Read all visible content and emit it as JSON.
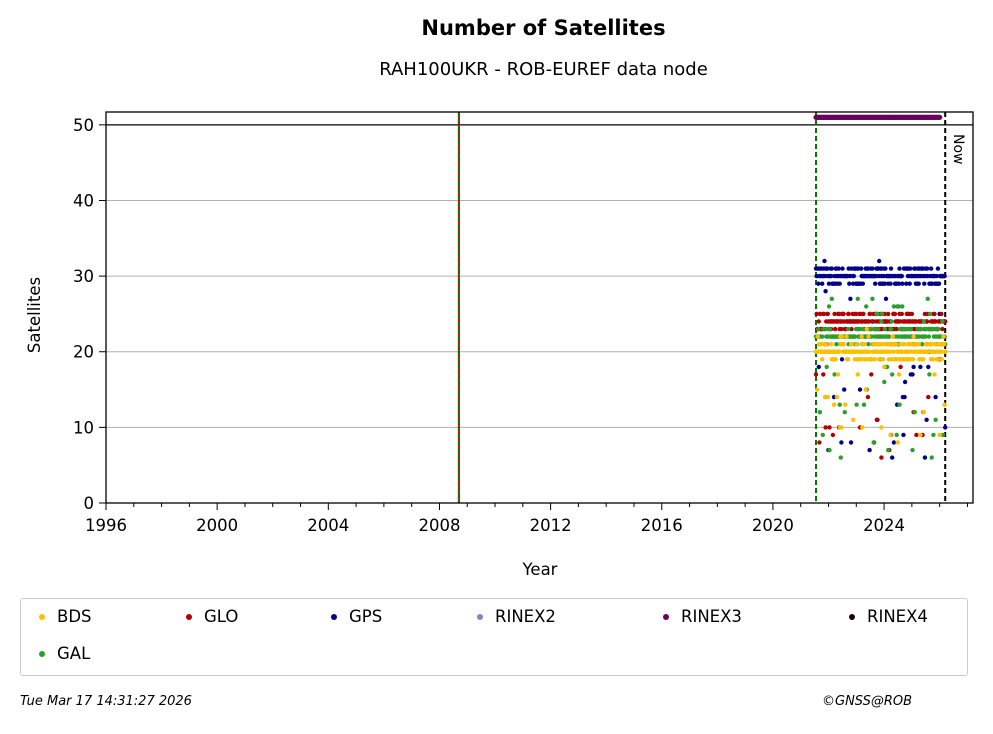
{
  "footer": {
    "timestamp": "Tue Mar 17 14:31:27 2026",
    "credit": "©GNSS@ROB"
  },
  "chart_data": {
    "type": "scatter",
    "title": "Number of Satellites",
    "subtitle": "RAH100UKR - ROB-EUREF data node",
    "xlabel": "Year",
    "ylabel": "Satellites",
    "xlim": [
      1996,
      2027.2
    ],
    "ylim": [
      0,
      51.7
    ],
    "xticks": [
      1996,
      2000,
      2004,
      2008,
      2012,
      2016,
      2020,
      2024
    ],
    "yticks": [
      0,
      10,
      20,
      30,
      40,
      50
    ],
    "grid": "horizontal",
    "now_label": "Now",
    "now_x": 2026.2,
    "vertical_markers": [
      {
        "x": 2008.7,
        "style": "red-green dashed"
      },
      {
        "x": 2021.55,
        "style": "green dashed"
      },
      {
        "x": 2026.2,
        "style": "black dashed"
      }
    ],
    "legend_position": "below",
    "legend": [
      {
        "name": "BDS",
        "color": "#ffbf00"
      },
      {
        "name": "GLO",
        "color": "#b30000"
      },
      {
        "name": "GPS",
        "color": "#00008b"
      },
      {
        "name": "RINEX2",
        "color": "#8a7fc2"
      },
      {
        "name": "RINEX3",
        "color": "#6b005e"
      },
      {
        "name": "RINEX4",
        "color": "#1a0010"
      },
      {
        "name": "GAL",
        "color": "#2ca02c"
      }
    ],
    "series": [
      {
        "name": "GPS",
        "x_range": [
          2021.55,
          2026.2
        ],
        "typical": 30,
        "min": 6,
        "max": 32
      },
      {
        "name": "GLO",
        "x_range": [
          2021.55,
          2026.2
        ],
        "typical": 24,
        "min": 6,
        "max": 24
      },
      {
        "name": "GAL",
        "x_range": [
          2021.55,
          2026.2
        ],
        "typical": 22,
        "min": 6,
        "max": 27
      },
      {
        "name": "BDS",
        "x_range": [
          2021.55,
          2026.2
        ],
        "typical": 20,
        "min": 8,
        "max": 23
      },
      {
        "name": "RINEX3",
        "x_range": [
          2021.55,
          2026.0
        ],
        "typical": 51,
        "min": 51,
        "max": 51
      }
    ]
  }
}
